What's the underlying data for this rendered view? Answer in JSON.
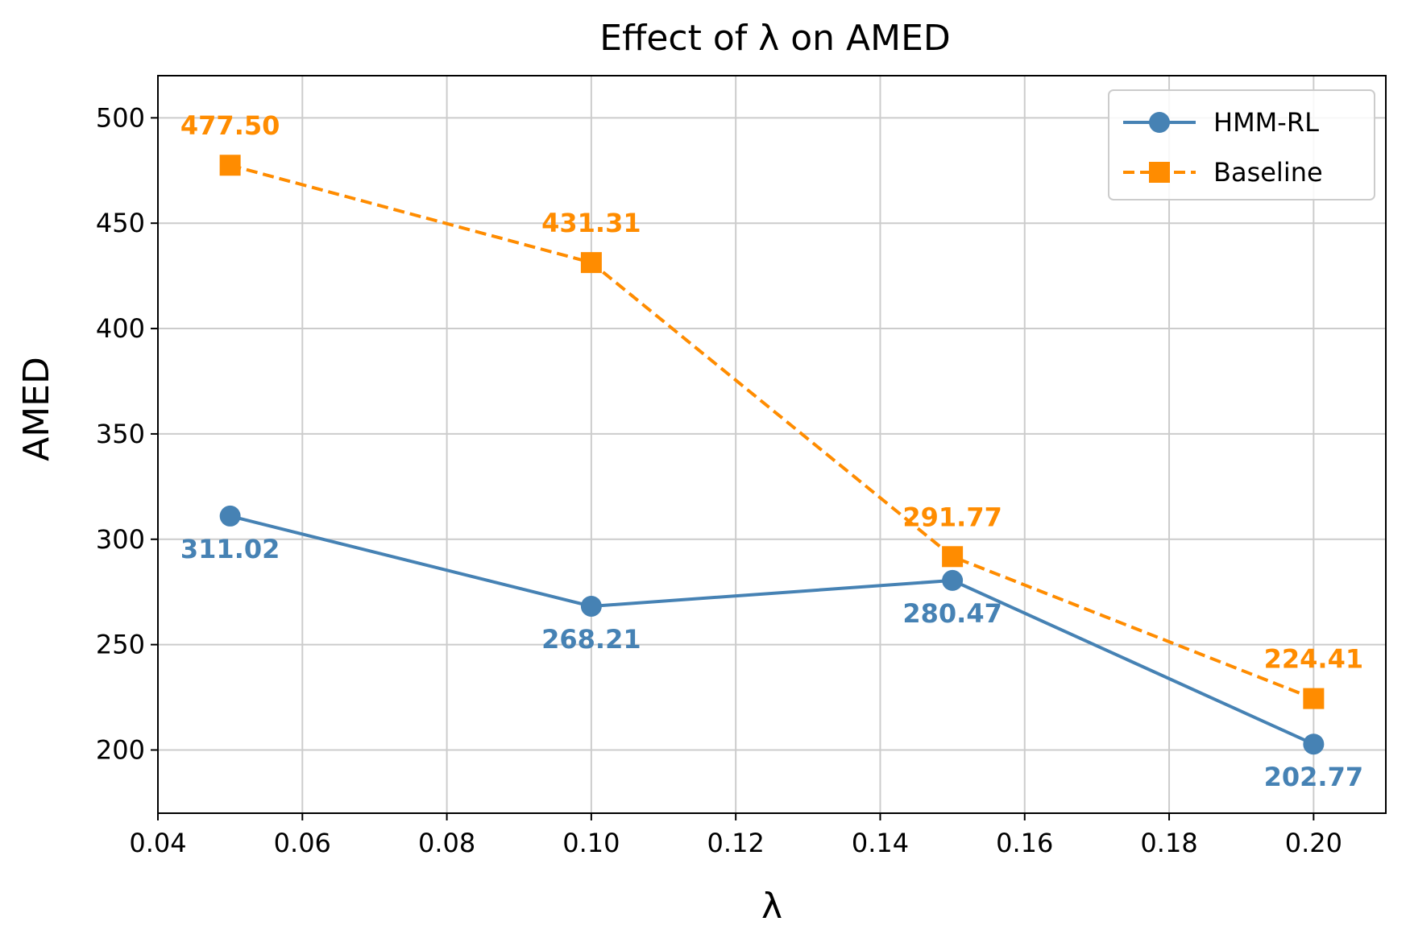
{
  "chart_data": {
    "type": "line",
    "title": "Effect of λ on AMED",
    "xlabel": "λ",
    "ylabel": "AMED",
    "xlim": [
      0.04,
      0.21
    ],
    "ylim": [
      170,
      520
    ],
    "xticks": [
      0.04,
      0.06,
      0.08,
      0.1,
      0.12,
      0.14,
      0.16,
      0.18,
      0.2
    ],
    "xtick_labels": [
      "0.04",
      "0.06",
      "0.08",
      "0.10",
      "0.12",
      "0.14",
      "0.16",
      "0.18",
      "0.20"
    ],
    "yticks": [
      200,
      250,
      300,
      350,
      400,
      450,
      500
    ],
    "ytick_labels": [
      "200",
      "250",
      "300",
      "350",
      "400",
      "450",
      "500"
    ],
    "grid": true,
    "legend_position": "top-right",
    "x": [
      0.05,
      0.1,
      0.15,
      0.2
    ],
    "series": [
      {
        "name": "HMM-RL",
        "values": [
          311.02,
          268.21,
          280.47,
          202.77
        ],
        "labels": [
          "311.02",
          "268.21",
          "280.47",
          "202.77"
        ],
        "label_position": "below",
        "color": "#4682B4",
        "marker": "circle",
        "line_style": "solid"
      },
      {
        "name": "Baseline",
        "values": [
          477.5,
          431.31,
          291.77,
          224.41
        ],
        "labels": [
          "477.50",
          "431.31",
          "291.77",
          "224.41"
        ],
        "label_position": "above",
        "color": "#FF8C00",
        "marker": "square",
        "line_style": "dashed"
      }
    ]
  }
}
